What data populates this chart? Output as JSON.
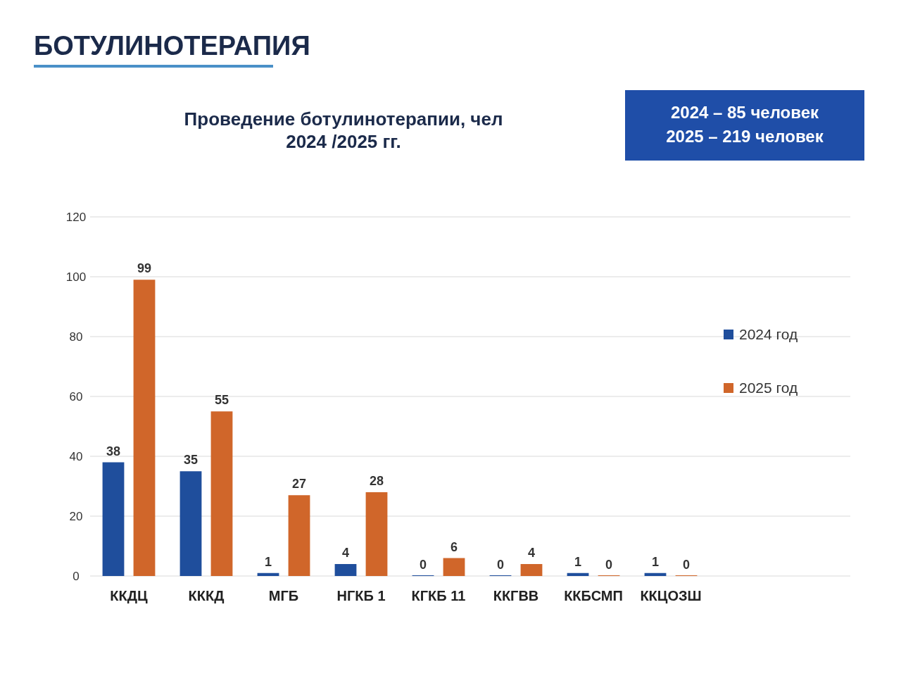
{
  "chart_data": {
    "type": "bar",
    "title": "БОТУЛИНОТЕРАПИЯ",
    "subtitle": "Проведение ботулинотерапии, чел\n2024 /2025 гг.",
    "annotations": [
      "2024 – 85 человек",
      "2025 – 219 человек"
    ],
    "categories": [
      "ККДЦ",
      "КККД",
      "МГБ",
      "НГКБ 1",
      "КГКБ 11",
      "ККГВВ",
      "ККБСМП",
      "ККЦОЗШ"
    ],
    "series": [
      {
        "name": "2024 год",
        "color": "#1f4e9c",
        "values": [
          38,
          35,
          1,
          4,
          0,
          0,
          1,
          1
        ]
      },
      {
        "name": "2025 год",
        "color": "#d0662a",
        "values": [
          99,
          55,
          27,
          28,
          6,
          4,
          0,
          0
        ]
      }
    ],
    "ylim": [
      0,
      120
    ],
    "yticks": [
      0,
      20,
      40,
      60,
      80,
      100,
      120
    ],
    "grid": "y",
    "legend": "right",
    "data_labels": true
  }
}
